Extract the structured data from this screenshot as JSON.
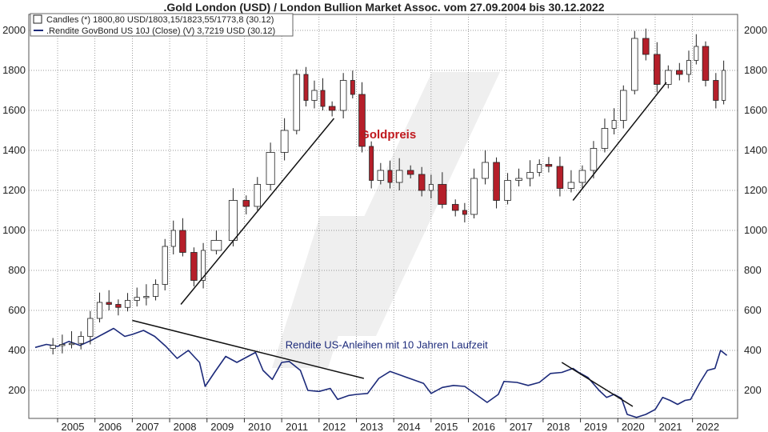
{
  "title": ".Gold London (USD) / London Bullion Market Assoc. vom 27.09.2004 bis 30.12.2022",
  "chart_data": {
    "type": "line",
    "title": ".Gold London (USD) / London Bullion Market Assoc. vom 27.09.2004 bis 30.12.2022",
    "ylim": [
      60,
      2080
    ],
    "y_ticks": [
      200,
      400,
      600,
      800,
      1000,
      1200,
      1400,
      1600,
      1800,
      2000
    ],
    "xlim": [
      2004.4,
      2022.95
    ],
    "x_ticks": [
      {
        "label": "2005",
        "year": 2005
      },
      {
        "label": "2006",
        "year": 2006
      },
      {
        "label": "2007",
        "year": 2007
      },
      {
        "label": "2008",
        "year": 2008
      },
      {
        "label": "2009",
        "year": 2009
      },
      {
        "label": "2010",
        "year": 2010
      },
      {
        "label": "2011",
        "year": 2011
      },
      {
        "label": "2012",
        "year": 2012
      },
      {
        "label": "2013",
        "year": 2013
      },
      {
        "label": "2014",
        "year": 2014
      },
      {
        "label": "2015",
        "year": 2015
      },
      {
        "label": "2016",
        "year": 2016
      },
      {
        "label": "2017",
        "year": 2017
      },
      {
        "label": "2018",
        "year": 2018
      },
      {
        "label": "2019",
        "year": 2019
      },
      {
        "label": "2020",
        "year": 2020
      },
      {
        "label": "2021",
        "year": 2021
      },
      {
        "label": "2022",
        "year": 2022
      }
    ],
    "legend": [
      {
        "name": "Candles (*) 1800,80 USD/1803,15/1823,55/1773,8 (30.12)",
        "marker": "box"
      },
      {
        "name": ".Rendite GovBond US 10J (Close) (V) 3,7219 USD (30.12)",
        "marker": "line",
        "color": "#1c2a7a"
      }
    ],
    "annotations": [
      {
        "text": "Goldpreis",
        "color": "#c0191e",
        "x": 2013.1,
        "y": 1460
      },
      {
        "text": "Rendite US-Anleihen mit 10 Jahren Laufzeit",
        "color": "#1c2a7a",
        "x": 2011.1,
        "y": 410
      }
    ],
    "series": [
      {
        "name": "Gold (USD)",
        "type": "candle",
        "up_color": "#ffffff",
        "down_color": "#b51f2a",
        "points": [
          [
            2004.75,
            410
          ],
          [
            2005.0,
            425
          ],
          [
            2005.25,
            430
          ],
          [
            2005.5,
            435
          ],
          [
            2005.75,
            470
          ],
          [
            2006.0,
            560
          ],
          [
            2006.25,
            640
          ],
          [
            2006.5,
            630
          ],
          [
            2006.75,
            615
          ],
          [
            2007.0,
            650
          ],
          [
            2007.25,
            665
          ],
          [
            2007.5,
            670
          ],
          [
            2007.75,
            730
          ],
          [
            2008.0,
            920
          ],
          [
            2008.2,
            1000
          ],
          [
            2008.5,
            890
          ],
          [
            2008.8,
            750
          ],
          [
            2009.0,
            900
          ],
          [
            2009.5,
            950
          ],
          [
            2009.9,
            1150
          ],
          [
            2010.2,
            1120
          ],
          [
            2010.5,
            1230
          ],
          [
            2010.9,
            1390
          ],
          [
            2011.25,
            1500
          ],
          [
            2011.55,
            1780
          ],
          [
            2011.75,
            1650
          ],
          [
            2012.0,
            1700
          ],
          [
            2012.2,
            1620
          ],
          [
            2012.5,
            1600
          ],
          [
            2012.8,
            1750
          ],
          [
            2013.0,
            1680
          ],
          [
            2013.3,
            1420
          ],
          [
            2013.5,
            1250
          ],
          [
            2013.8,
            1300
          ],
          [
            2014.0,
            1240
          ],
          [
            2014.3,
            1300
          ],
          [
            2014.6,
            1280
          ],
          [
            2014.9,
            1200
          ],
          [
            2015.1,
            1230
          ],
          [
            2015.5,
            1130
          ],
          [
            2015.8,
            1100
          ],
          [
            2016.0,
            1080
          ],
          [
            2016.3,
            1260
          ],
          [
            2016.6,
            1340
          ],
          [
            2016.9,
            1150
          ],
          [
            2017.2,
            1250
          ],
          [
            2017.5,
            1260
          ],
          [
            2017.8,
            1290
          ],
          [
            2018.0,
            1330
          ],
          [
            2018.3,
            1320
          ],
          [
            2018.6,
            1210
          ],
          [
            2018.9,
            1240
          ],
          [
            2019.2,
            1300
          ],
          [
            2019.5,
            1410
          ],
          [
            2019.8,
            1510
          ],
          [
            2020.0,
            1550
          ],
          [
            2020.3,
            1700
          ],
          [
            2020.6,
            1960
          ],
          [
            2020.9,
            1880
          ],
          [
            2021.2,
            1730
          ],
          [
            2021.5,
            1800
          ],
          [
            2021.8,
            1780
          ],
          [
            2022.0,
            1850
          ],
          [
            2022.2,
            1920
          ],
          [
            2022.5,
            1750
          ],
          [
            2022.75,
            1650
          ],
          [
            2022.92,
            1800
          ]
        ]
      },
      {
        "name": "Rendite US-Anleihen 10J",
        "type": "line",
        "color": "#1c2a7a",
        "points": [
          [
            2004.4,
            415
          ],
          [
            2004.7,
            430
          ],
          [
            2005.0,
            420
          ],
          [
            2005.3,
            445
          ],
          [
            2005.6,
            425
          ],
          [
            2005.9,
            450
          ],
          [
            2006.2,
            480
          ],
          [
            2006.5,
            510
          ],
          [
            2006.8,
            470
          ],
          [
            2007.0,
            480
          ],
          [
            2007.3,
            500
          ],
          [
            2007.6,
            470
          ],
          [
            2007.9,
            420
          ],
          [
            2008.2,
            360
          ],
          [
            2008.5,
            400
          ],
          [
            2008.8,
            340
          ],
          [
            2008.95,
            220
          ],
          [
            2009.2,
            290
          ],
          [
            2009.5,
            370
          ],
          [
            2009.8,
            340
          ],
          [
            2010.1,
            370
          ],
          [
            2010.3,
            390
          ],
          [
            2010.5,
            300
          ],
          [
            2010.75,
            255
          ],
          [
            2011.0,
            340
          ],
          [
            2011.2,
            345
          ],
          [
            2011.5,
            300
          ],
          [
            2011.7,
            200
          ],
          [
            2012.0,
            195
          ],
          [
            2012.3,
            210
          ],
          [
            2012.5,
            155
          ],
          [
            2012.8,
            175
          ],
          [
            2013.0,
            180
          ],
          [
            2013.3,
            185
          ],
          [
            2013.6,
            260
          ],
          [
            2013.9,
            295
          ],
          [
            2014.2,
            275
          ],
          [
            2014.5,
            255
          ],
          [
            2014.8,
            235
          ],
          [
            2015.0,
            185
          ],
          [
            2015.3,
            215
          ],
          [
            2015.6,
            225
          ],
          [
            2015.9,
            220
          ],
          [
            2016.2,
            180
          ],
          [
            2016.5,
            140
          ],
          [
            2016.8,
            180
          ],
          [
            2016.95,
            245
          ],
          [
            2017.3,
            240
          ],
          [
            2017.6,
            225
          ],
          [
            2017.9,
            240
          ],
          [
            2018.2,
            285
          ],
          [
            2018.5,
            290
          ],
          [
            2018.8,
            310
          ],
          [
            2018.95,
            290
          ],
          [
            2019.2,
            265
          ],
          [
            2019.5,
            200
          ],
          [
            2019.7,
            165
          ],
          [
            2019.9,
            180
          ],
          [
            2020.1,
            160
          ],
          [
            2020.25,
            80
          ],
          [
            2020.5,
            65
          ],
          [
            2020.75,
            80
          ],
          [
            2021.0,
            105
          ],
          [
            2021.2,
            165
          ],
          [
            2021.4,
            150
          ],
          [
            2021.6,
            130
          ],
          [
            2021.8,
            150
          ],
          [
            2021.95,
            155
          ],
          [
            2022.2,
            240
          ],
          [
            2022.4,
            300
          ],
          [
            2022.6,
            310
          ],
          [
            2022.75,
            400
          ],
          [
            2022.92,
            375
          ]
        ]
      }
    ],
    "trendlines": [
      {
        "series": "Gold (USD)",
        "from": [
          2008.3,
          630
        ],
        "to": [
          2012.4,
          1560
        ]
      },
      {
        "series": "Gold (USD)",
        "from": [
          2018.8,
          1150
        ],
        "to": [
          2021.3,
          1740
        ]
      },
      {
        "series": "Rendite US-Anleihen 10J",
        "from": [
          2007.0,
          550
        ],
        "to": [
          2013.2,
          260
        ]
      },
      {
        "series": "Rendite US-Anleihen 10J",
        "from": [
          2018.5,
          340
        ],
        "to": [
          2020.4,
          120
        ]
      }
    ]
  }
}
